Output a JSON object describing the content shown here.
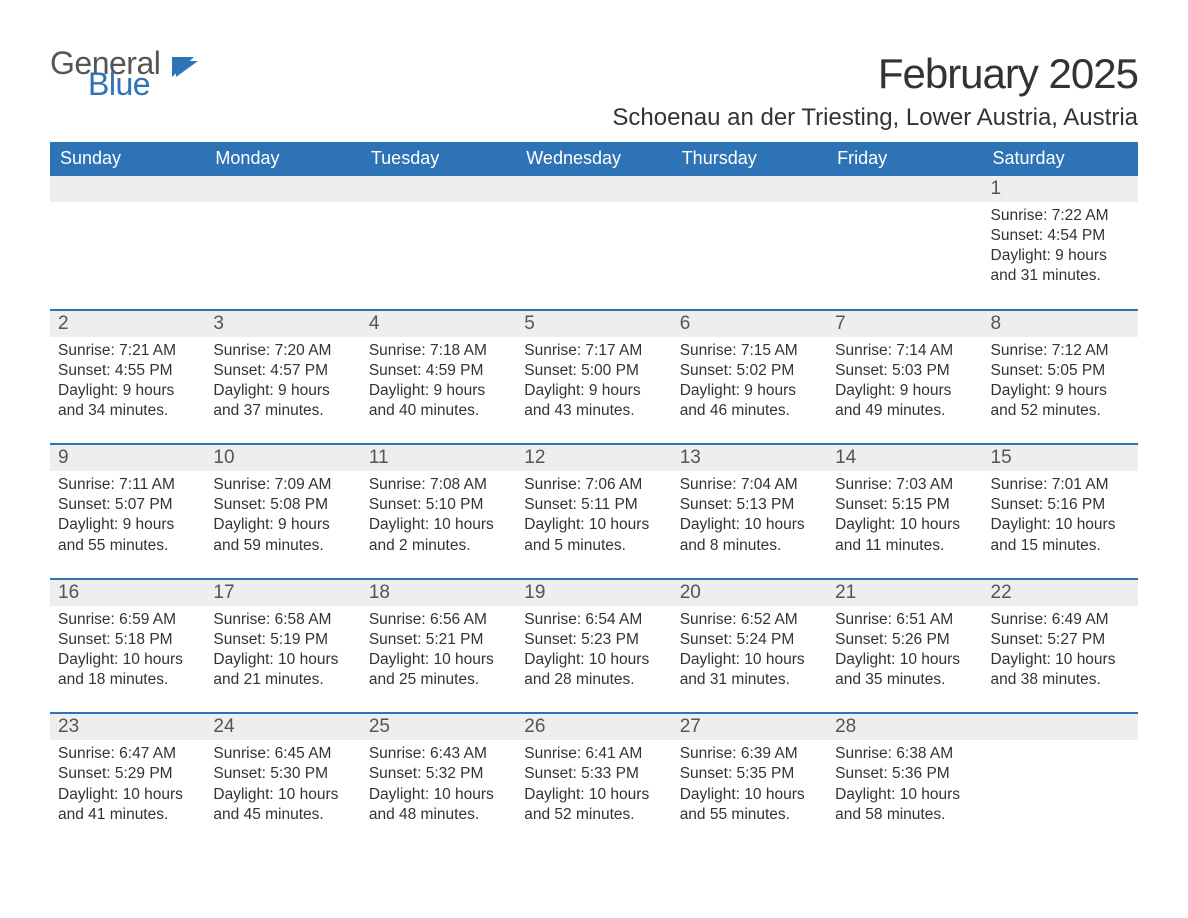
{
  "brand": {
    "text_general": "General",
    "text_blue": "Blue",
    "icon_color": "#2d73b5"
  },
  "title": {
    "month": "February 2025",
    "location": "Schoenau an der Triesting, Lower Austria, Austria"
  },
  "colors": {
    "header_bg": "#2d73b5",
    "header_text": "#ffffff",
    "row_divider": "#2d73b5",
    "daynum_bg": "#eeeeee",
    "body_text": "#333333",
    "page_bg": "#ffffff"
  },
  "weekdays": [
    "Sunday",
    "Monday",
    "Tuesday",
    "Wednesday",
    "Thursday",
    "Friday",
    "Saturday"
  ],
  "weeks": [
    [
      {
        "day": "",
        "sunrise": "",
        "sunset": "",
        "daylight": ""
      },
      {
        "day": "",
        "sunrise": "",
        "sunset": "",
        "daylight": ""
      },
      {
        "day": "",
        "sunrise": "",
        "sunset": "",
        "daylight": ""
      },
      {
        "day": "",
        "sunrise": "",
        "sunset": "",
        "daylight": ""
      },
      {
        "day": "",
        "sunrise": "",
        "sunset": "",
        "daylight": ""
      },
      {
        "day": "",
        "sunrise": "",
        "sunset": "",
        "daylight": ""
      },
      {
        "day": "1",
        "sunrise": "Sunrise: 7:22 AM",
        "sunset": "Sunset: 4:54 PM",
        "daylight": "Daylight: 9 hours and 31 minutes."
      }
    ],
    [
      {
        "day": "2",
        "sunrise": "Sunrise: 7:21 AM",
        "sunset": "Sunset: 4:55 PM",
        "daylight": "Daylight: 9 hours and 34 minutes."
      },
      {
        "day": "3",
        "sunrise": "Sunrise: 7:20 AM",
        "sunset": "Sunset: 4:57 PM",
        "daylight": "Daylight: 9 hours and 37 minutes."
      },
      {
        "day": "4",
        "sunrise": "Sunrise: 7:18 AM",
        "sunset": "Sunset: 4:59 PM",
        "daylight": "Daylight: 9 hours and 40 minutes."
      },
      {
        "day": "5",
        "sunrise": "Sunrise: 7:17 AM",
        "sunset": "Sunset: 5:00 PM",
        "daylight": "Daylight: 9 hours and 43 minutes."
      },
      {
        "day": "6",
        "sunrise": "Sunrise: 7:15 AM",
        "sunset": "Sunset: 5:02 PM",
        "daylight": "Daylight: 9 hours and 46 minutes."
      },
      {
        "day": "7",
        "sunrise": "Sunrise: 7:14 AM",
        "sunset": "Sunset: 5:03 PM",
        "daylight": "Daylight: 9 hours and 49 minutes."
      },
      {
        "day": "8",
        "sunrise": "Sunrise: 7:12 AM",
        "sunset": "Sunset: 5:05 PM",
        "daylight": "Daylight: 9 hours and 52 minutes."
      }
    ],
    [
      {
        "day": "9",
        "sunrise": "Sunrise: 7:11 AM",
        "sunset": "Sunset: 5:07 PM",
        "daylight": "Daylight: 9 hours and 55 minutes."
      },
      {
        "day": "10",
        "sunrise": "Sunrise: 7:09 AM",
        "sunset": "Sunset: 5:08 PM",
        "daylight": "Daylight: 9 hours and 59 minutes."
      },
      {
        "day": "11",
        "sunrise": "Sunrise: 7:08 AM",
        "sunset": "Sunset: 5:10 PM",
        "daylight": "Daylight: 10 hours and 2 minutes."
      },
      {
        "day": "12",
        "sunrise": "Sunrise: 7:06 AM",
        "sunset": "Sunset: 5:11 PM",
        "daylight": "Daylight: 10 hours and 5 minutes."
      },
      {
        "day": "13",
        "sunrise": "Sunrise: 7:04 AM",
        "sunset": "Sunset: 5:13 PM",
        "daylight": "Daylight: 10 hours and 8 minutes."
      },
      {
        "day": "14",
        "sunrise": "Sunrise: 7:03 AM",
        "sunset": "Sunset: 5:15 PM",
        "daylight": "Daylight: 10 hours and 11 minutes."
      },
      {
        "day": "15",
        "sunrise": "Sunrise: 7:01 AM",
        "sunset": "Sunset: 5:16 PM",
        "daylight": "Daylight: 10 hours and 15 minutes."
      }
    ],
    [
      {
        "day": "16",
        "sunrise": "Sunrise: 6:59 AM",
        "sunset": "Sunset: 5:18 PM",
        "daylight": "Daylight: 10 hours and 18 minutes."
      },
      {
        "day": "17",
        "sunrise": "Sunrise: 6:58 AM",
        "sunset": "Sunset: 5:19 PM",
        "daylight": "Daylight: 10 hours and 21 minutes."
      },
      {
        "day": "18",
        "sunrise": "Sunrise: 6:56 AM",
        "sunset": "Sunset: 5:21 PM",
        "daylight": "Daylight: 10 hours and 25 minutes."
      },
      {
        "day": "19",
        "sunrise": "Sunrise: 6:54 AM",
        "sunset": "Sunset: 5:23 PM",
        "daylight": "Daylight: 10 hours and 28 minutes."
      },
      {
        "day": "20",
        "sunrise": "Sunrise: 6:52 AM",
        "sunset": "Sunset: 5:24 PM",
        "daylight": "Daylight: 10 hours and 31 minutes."
      },
      {
        "day": "21",
        "sunrise": "Sunrise: 6:51 AM",
        "sunset": "Sunset: 5:26 PM",
        "daylight": "Daylight: 10 hours and 35 minutes."
      },
      {
        "day": "22",
        "sunrise": "Sunrise: 6:49 AM",
        "sunset": "Sunset: 5:27 PM",
        "daylight": "Daylight: 10 hours and 38 minutes."
      }
    ],
    [
      {
        "day": "23",
        "sunrise": "Sunrise: 6:47 AM",
        "sunset": "Sunset: 5:29 PM",
        "daylight": "Daylight: 10 hours and 41 minutes."
      },
      {
        "day": "24",
        "sunrise": "Sunrise: 6:45 AM",
        "sunset": "Sunset: 5:30 PM",
        "daylight": "Daylight: 10 hours and 45 minutes."
      },
      {
        "day": "25",
        "sunrise": "Sunrise: 6:43 AM",
        "sunset": "Sunset: 5:32 PM",
        "daylight": "Daylight: 10 hours and 48 minutes."
      },
      {
        "day": "26",
        "sunrise": "Sunrise: 6:41 AM",
        "sunset": "Sunset: 5:33 PM",
        "daylight": "Daylight: 10 hours and 52 minutes."
      },
      {
        "day": "27",
        "sunrise": "Sunrise: 6:39 AM",
        "sunset": "Sunset: 5:35 PM",
        "daylight": "Daylight: 10 hours and 55 minutes."
      },
      {
        "day": "28",
        "sunrise": "Sunrise: 6:38 AM",
        "sunset": "Sunset: 5:36 PM",
        "daylight": "Daylight: 10 hours and 58 minutes."
      },
      {
        "day": "",
        "sunrise": "",
        "sunset": "",
        "daylight": ""
      }
    ]
  ]
}
